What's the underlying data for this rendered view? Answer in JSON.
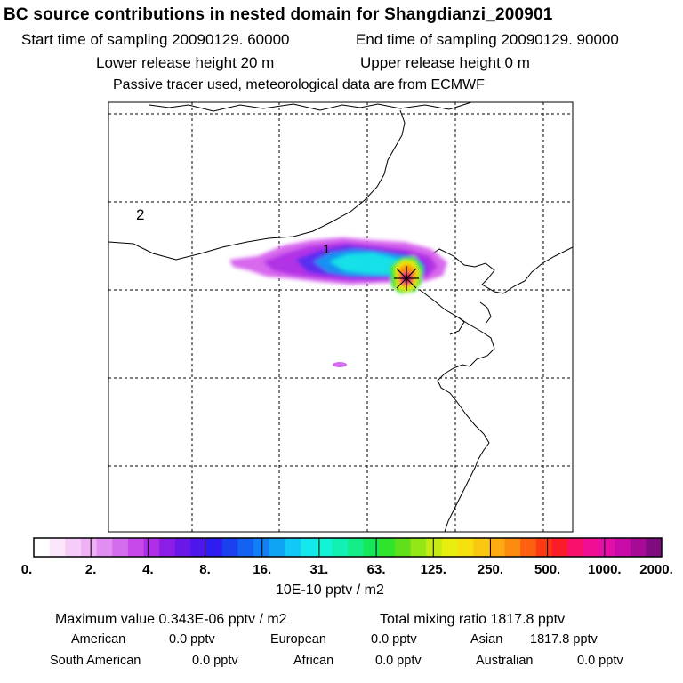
{
  "title": "BC  source contributions in nested domain for Shangdianzi_200901",
  "header": {
    "start": "Start time of sampling 20090129. 60000",
    "end": "End time of sampling 20090129. 90000",
    "lower": "Lower release height   20 m",
    "upper": "Upper release height    0 m",
    "note": "Passive tracer used, meteorological data are from ECMWF"
  },
  "map": {
    "labels": {
      "region2": "2",
      "region1": "1"
    }
  },
  "colorbar": {
    "ticks": [
      "0.",
      "2.",
      "4.",
      "8.",
      "16.",
      "31.",
      "63.",
      "125.",
      "250.",
      "500.",
      "1000.",
      "2000."
    ],
    "unit": "10E-10 pptv / m2",
    "colors": [
      "#ffffff",
      "#fbe6fb",
      "#f6ccf8",
      "#f0b0f5",
      "#e08ef2",
      "#d46cee",
      "#c64ae9",
      "#b02ee5",
      "#8a1ee6",
      "#6a18e8",
      "#4c16ec",
      "#2e1cf0",
      "#1a40f0",
      "#1462f2",
      "#1080f4",
      "#10a4f4",
      "#12c8f4",
      "#14e8ec",
      "#12f4d6",
      "#12f0b4",
      "#14ec88",
      "#14e858",
      "#30e42c",
      "#60e01c",
      "#94e616",
      "#c4ec12",
      "#e8ee10",
      "#f6e010",
      "#fac810",
      "#fcac10",
      "#fc8c10",
      "#fc6010",
      "#fc3a14",
      "#fc1c28",
      "#f8106a",
      "#f00e94",
      "#e40ea8",
      "#c80ca8",
      "#a80a98",
      "#800a80"
    ]
  },
  "stats": {
    "max": "Maximum value  0.343E-06 pptv / m2",
    "total": "Total mixing ratio     1817.8 pptv",
    "american": "American",
    "american_v": "0.0 pptv",
    "european": "European",
    "european_v": "0.0 pptv",
    "asian": "Asian",
    "asian_v": "1817.8 pptv",
    "south_american": "South American",
    "south_american_v": "0.0 pptv",
    "african": "African",
    "african_v": "0.0 pptv",
    "australian": "Australian",
    "australian_v": "0.0 pptv"
  }
}
